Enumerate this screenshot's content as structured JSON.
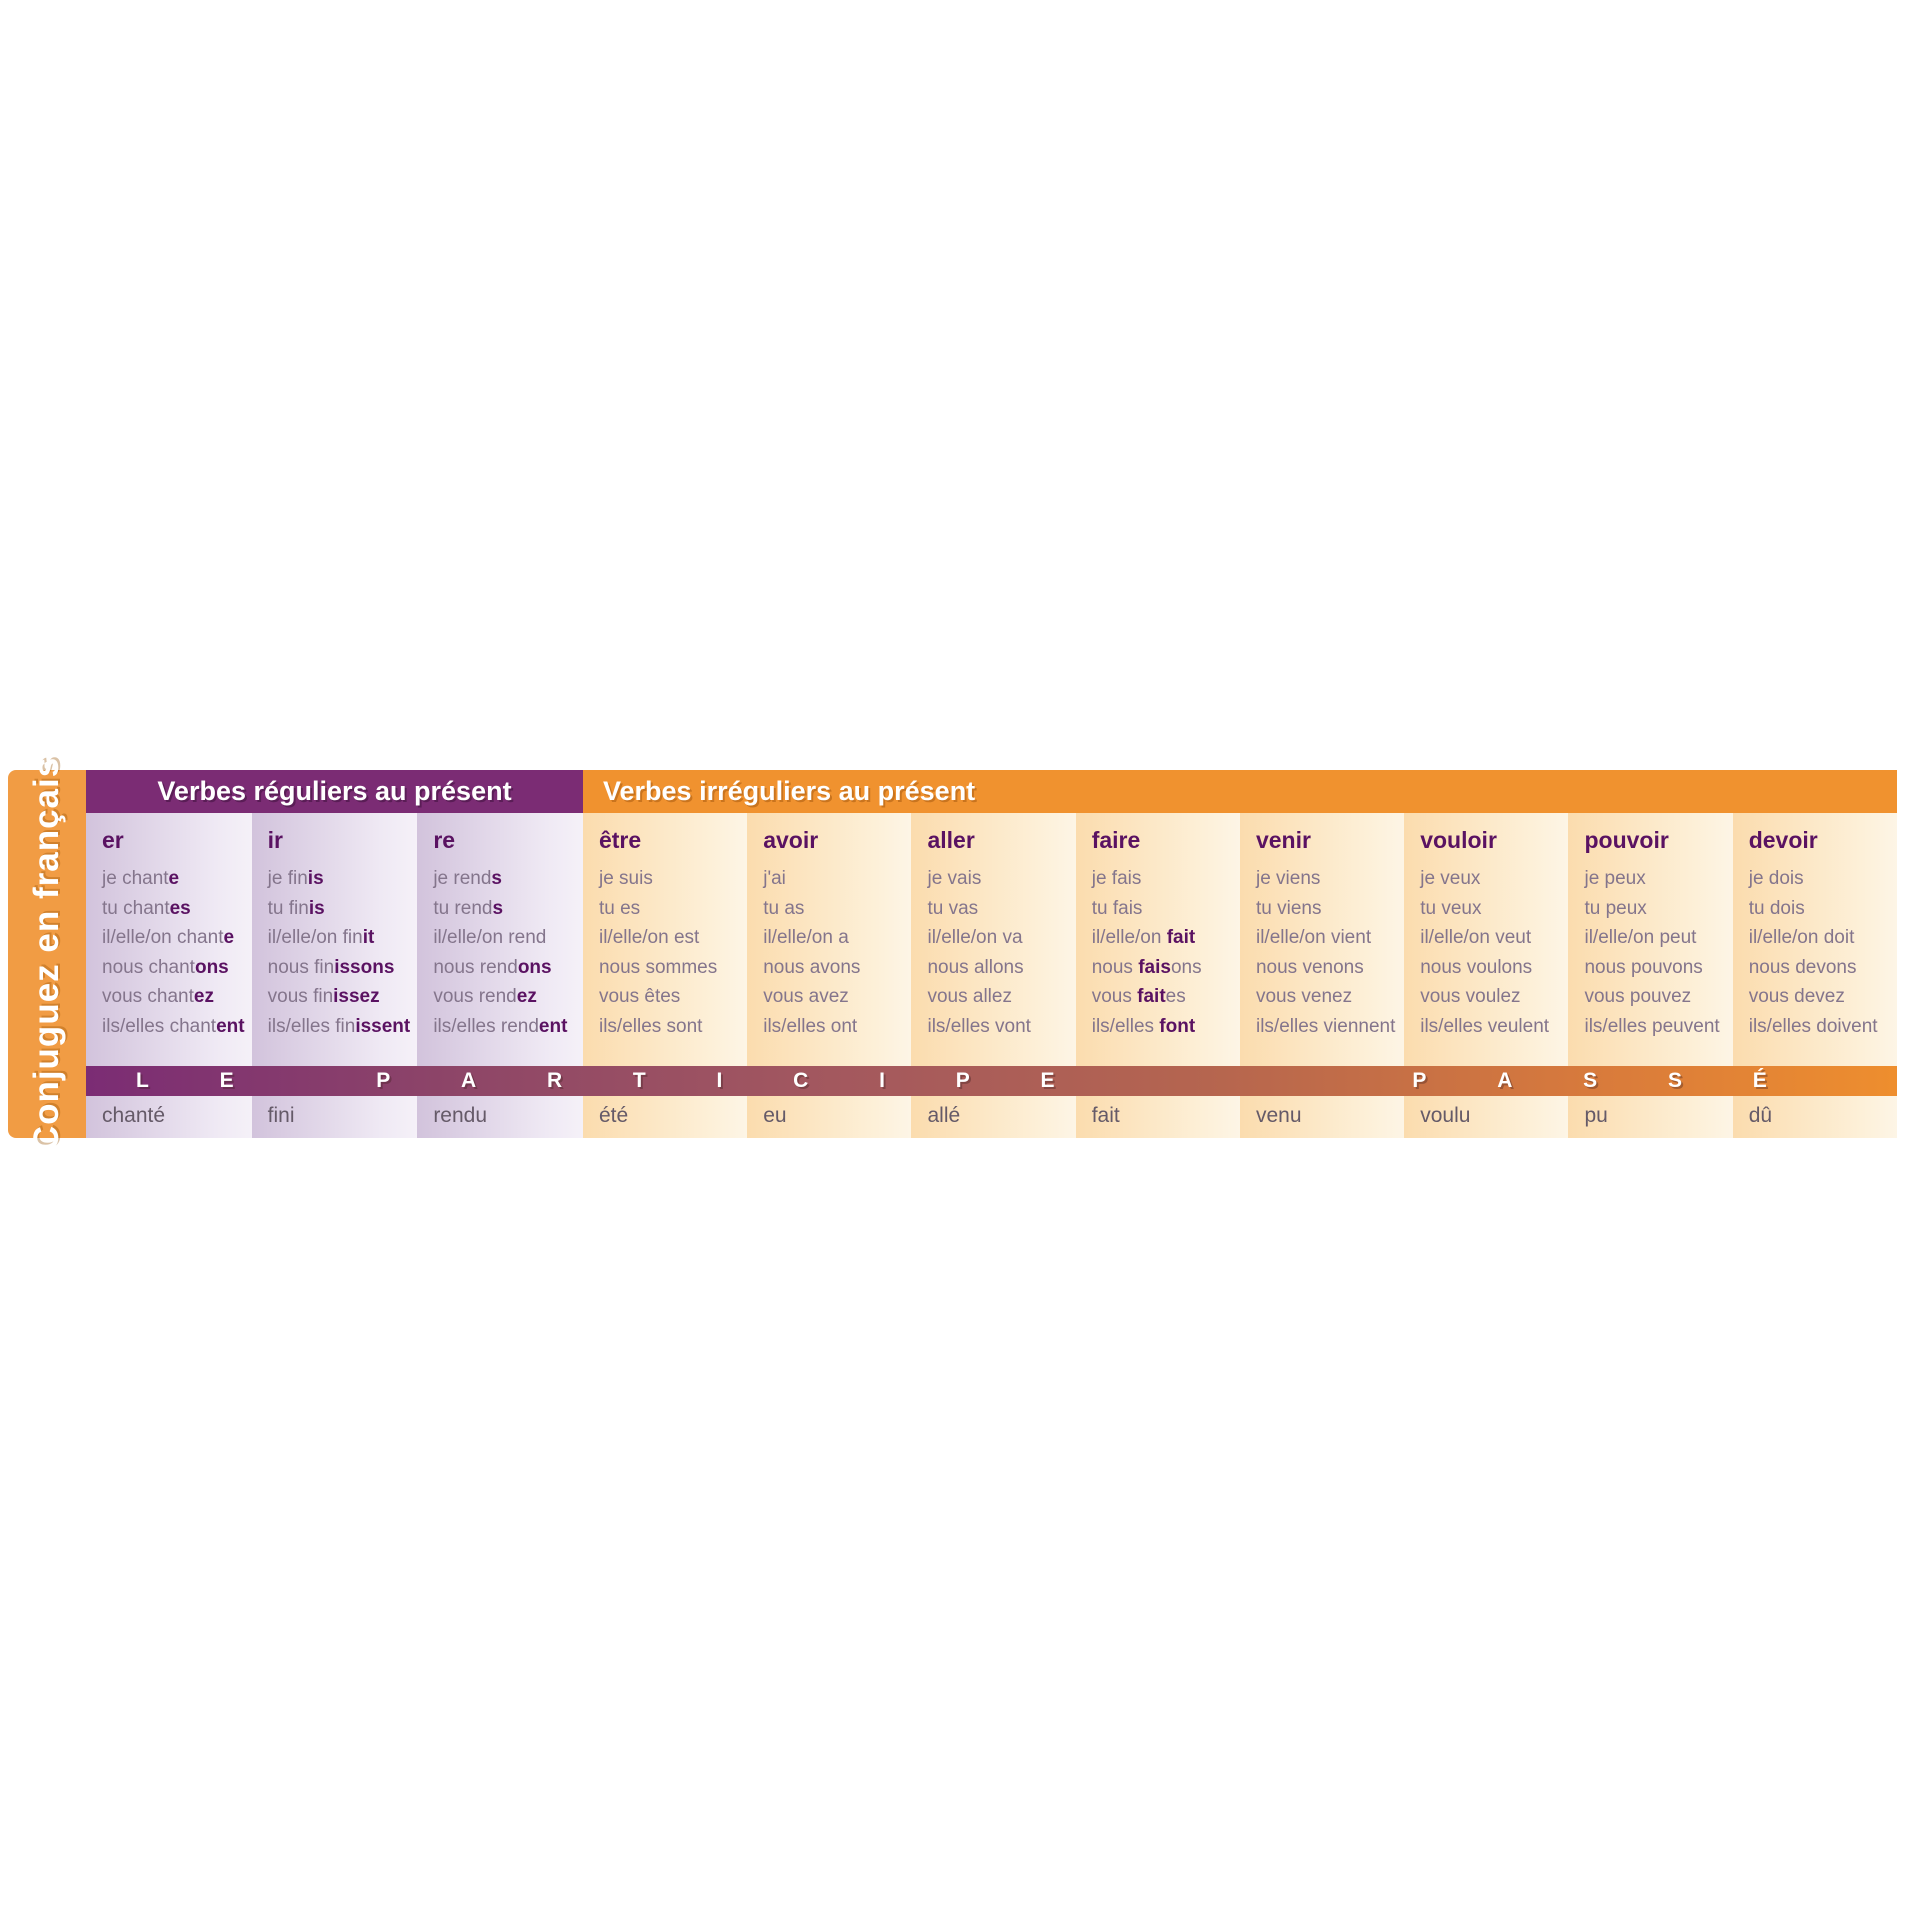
{
  "sidebar": {
    "title": "Conjuguez en français",
    "color": "#f19c44"
  },
  "sections": {
    "regular": {
      "header": "Verbes réguliers au présent",
      "header_color": "#7b2c74"
    },
    "irregular": {
      "header": "Verbes irréguliers au présent",
      "header_color": "#f0922f"
    }
  },
  "banner": {
    "text": "LE PARTICIPE PASSÉ",
    "slots": [
      "L",
      "E",
      "",
      "P",
      "A",
      "R",
      "T",
      "I",
      "C",
      "I",
      "P",
      "E",
      "",
      "",
      "",
      "",
      "P",
      "A",
      "S",
      "S",
      "É"
    ],
    "gradient_start": "#7b2c74",
    "gradient_end": "#ee8e2e"
  },
  "colors": {
    "bold_ending": "#5a1262",
    "base_text": "#84758c",
    "participle_text": "#655a68",
    "regular_band": "#d2c3dc",
    "irregular_band": "#fbdcae"
  },
  "columns": [
    {
      "section": "regular",
      "verb": "er",
      "participle": "chanté",
      "forms": [
        [
          "je chant",
          "e"
        ],
        [
          "tu chant",
          "es"
        ],
        [
          "il/elle/on chant",
          "e"
        ],
        [
          "nous chant",
          "ons"
        ],
        [
          "vous chant",
          "ez"
        ],
        [
          "ils/elles chant",
          "ent"
        ]
      ]
    },
    {
      "section": "regular",
      "verb": "ir",
      "participle": "fini",
      "forms": [
        [
          "je fin",
          "is"
        ],
        [
          "tu fin",
          "is"
        ],
        [
          "il/elle/on fin",
          "it"
        ],
        [
          "nous fin",
          "issons"
        ],
        [
          "vous fin",
          "issez"
        ],
        [
          "ils/elles fin",
          "issent"
        ]
      ]
    },
    {
      "section": "regular",
      "verb": "re",
      "participle": "rendu",
      "forms": [
        [
          "je rend",
          "s"
        ],
        [
          "tu rend",
          "s"
        ],
        [
          "il/elle/on rend",
          ""
        ],
        [
          "nous rend",
          "ons"
        ],
        [
          "vous rend",
          "ez"
        ],
        [
          "ils/elles rend",
          "ent"
        ]
      ]
    },
    {
      "section": "irregular",
      "verb": "être",
      "participle": "été",
      "forms": [
        [
          "je suis",
          ""
        ],
        [
          "tu es",
          ""
        ],
        [
          "il/elle/on est",
          ""
        ],
        [
          "nous sommes",
          ""
        ],
        [
          "vous êtes",
          ""
        ],
        [
          "ils/elles sont",
          ""
        ]
      ]
    },
    {
      "section": "irregular",
      "verb": "avoir",
      "participle": "eu",
      "forms": [
        [
          "j'ai",
          ""
        ],
        [
          "tu as",
          ""
        ],
        [
          "il/elle/on a",
          ""
        ],
        [
          "nous avons",
          ""
        ],
        [
          "vous avez",
          ""
        ],
        [
          "ils/elles ont",
          ""
        ]
      ]
    },
    {
      "section": "irregular",
      "verb": "aller",
      "participle": "allé",
      "forms": [
        [
          "je vais",
          ""
        ],
        [
          "tu vas",
          ""
        ],
        [
          "il/elle/on va",
          ""
        ],
        [
          "nous allons",
          ""
        ],
        [
          "vous allez",
          ""
        ],
        [
          "ils/elles vont",
          ""
        ]
      ]
    },
    {
      "section": "irregular",
      "verb": "faire",
      "participle": "fait",
      "forms": [
        [
          "je fais",
          ""
        ],
        [
          "tu fais",
          ""
        ],
        [
          "il/elle/on ",
          "fait"
        ],
        [
          "nous ",
          "fais",
          "ons"
        ],
        [
          "vous ",
          "fait",
          "es"
        ],
        [
          "ils/elles ",
          "font"
        ]
      ]
    },
    {
      "section": "irregular",
      "verb": "venir",
      "participle": "venu",
      "forms": [
        [
          "je viens",
          ""
        ],
        [
          "tu viens",
          ""
        ],
        [
          "il/elle/on vient",
          ""
        ],
        [
          "nous venons",
          ""
        ],
        [
          "vous venez",
          ""
        ],
        [
          "ils/elles viennent",
          ""
        ]
      ]
    },
    {
      "section": "irregular",
      "verb": "vouloir",
      "participle": "voulu",
      "forms": [
        [
          "je veux",
          ""
        ],
        [
          "tu veux",
          ""
        ],
        [
          "il/elle/on veut",
          ""
        ],
        [
          "nous voulons",
          ""
        ],
        [
          "vous voulez",
          ""
        ],
        [
          "ils/elles veulent",
          ""
        ]
      ]
    },
    {
      "section": "irregular",
      "verb": "pouvoir",
      "participle": "pu",
      "forms": [
        [
          "je peux",
          ""
        ],
        [
          "tu peux",
          ""
        ],
        [
          "il/elle/on peut",
          ""
        ],
        [
          "nous pouvons",
          ""
        ],
        [
          "vous pouvez",
          ""
        ],
        [
          "ils/elles peuvent",
          ""
        ]
      ]
    },
    {
      "section": "irregular",
      "verb": "devoir",
      "participle": "dû",
      "forms": [
        [
          "je dois",
          ""
        ],
        [
          "tu dois",
          ""
        ],
        [
          "il/elle/on doit",
          ""
        ],
        [
          "nous devons",
          ""
        ],
        [
          "vous devez",
          ""
        ],
        [
          "ils/elles doivent",
          ""
        ]
      ]
    }
  ]
}
